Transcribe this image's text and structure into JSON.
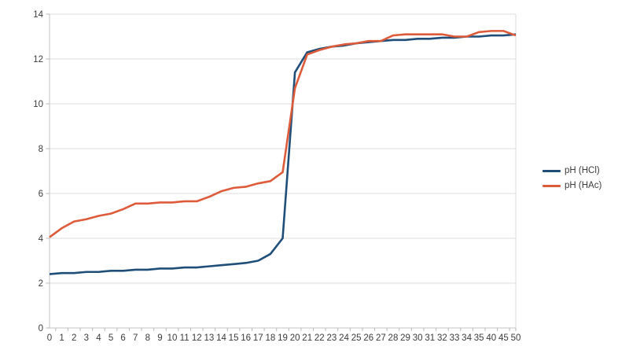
{
  "chart_data": {
    "type": "line",
    "title": "",
    "xlabel": "",
    "ylabel": "",
    "categories": [
      "0",
      "1",
      "2",
      "3",
      "4",
      "5",
      "6",
      "7",
      "8",
      "9",
      "10",
      "11",
      "12",
      "13",
      "14",
      "15",
      "16",
      "17",
      "18",
      "19",
      "20",
      "21",
      "22",
      "23",
      "24",
      "25",
      "26",
      "27",
      "28",
      "29",
      "30",
      "31",
      "32",
      "33",
      "34",
      "35",
      "40",
      "45",
      "50"
    ],
    "series": [
      {
        "name": "pH (HCl)",
        "color": "#1f4e79",
        "values": [
          2.4,
          2.45,
          2.45,
          2.5,
          2.5,
          2.55,
          2.55,
          2.6,
          2.6,
          2.65,
          2.65,
          2.7,
          2.7,
          2.75,
          2.8,
          2.85,
          2.9,
          3.0,
          3.3,
          4.0,
          11.4,
          12.3,
          12.45,
          12.55,
          12.6,
          12.7,
          12.75,
          12.8,
          12.85,
          12.85,
          12.9,
          12.9,
          12.95,
          12.95,
          13.0,
          13.0,
          13.05,
          13.05,
          13.1
        ]
      },
      {
        "name": "pH (HAc)",
        "color": "#dd5b3a",
        "values": [
          4.05,
          4.45,
          4.75,
          4.85,
          5.0,
          5.1,
          5.3,
          5.55,
          5.55,
          5.6,
          5.6,
          5.65,
          5.65,
          5.85,
          6.1,
          6.25,
          6.3,
          6.45,
          6.55,
          6.95,
          10.7,
          12.2,
          12.4,
          12.55,
          12.65,
          12.7,
          12.8,
          12.8,
          13.05,
          13.1,
          13.1,
          13.1,
          13.1,
          13.0,
          13.0,
          13.2,
          13.25,
          13.25,
          13.05
        ]
      }
    ],
    "ylim": [
      0,
      14
    ],
    "ytick_step": 2,
    "ytick_labels": [
      "0",
      "2",
      "4",
      "6",
      "8",
      "10",
      "12",
      "14"
    ],
    "grid": "horizontal",
    "legend_position": "right"
  },
  "colors": {
    "background": "#ffffff",
    "gridline": "#dedede",
    "axis": "#c3c3c3",
    "tick": "#b9b9b9",
    "label_text": "#3b3b3b"
  }
}
